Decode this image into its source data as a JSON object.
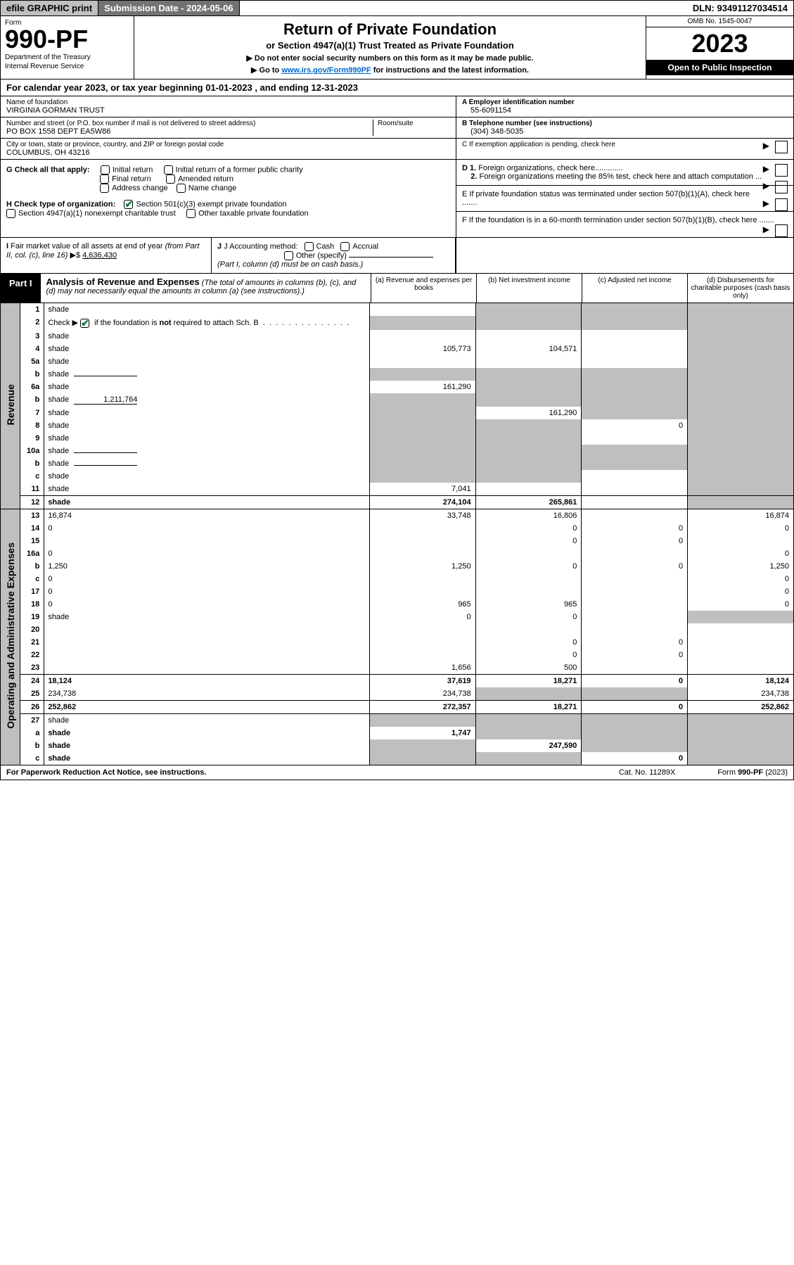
{
  "topbar": {
    "efile": "efile GRAPHIC print",
    "submission": "Submission Date - 2024-05-06",
    "dln": "DLN: 93491127034514"
  },
  "header": {
    "form_label": "Form",
    "form_num": "990-PF",
    "dept1": "Department of the Treasury",
    "dept2": "Internal Revenue Service",
    "title": "Return of Private Foundation",
    "subtitle": "or Section 4947(a)(1) Trust Treated as Private Foundation",
    "note1": "▶ Do not enter social security numbers on this form as it may be made public.",
    "note2_pre": "▶ Go to ",
    "note2_link": "www.irs.gov/Form990PF",
    "note2_post": " for instructions and the latest information.",
    "omb": "OMB No. 1545-0047",
    "year": "2023",
    "inspect": "Open to Public Inspection"
  },
  "cal_year": "For calendar year 2023, or tax year beginning 01-01-2023                              , and ending 12-31-2023",
  "info": {
    "name_label": "Name of foundation",
    "name": "VIRGINIA GORMAN TRUST",
    "addr_label": "Number and street (or P.O. box number if mail is not delivered to street address)",
    "room_label": "Room/suite",
    "addr": "PO BOX 1558 DEPT EA5W86",
    "city_label": "City or town, state or province, country, and ZIP or foreign postal code",
    "city": "COLUMBUS, OH  43216",
    "ein_label": "A Employer identification number",
    "ein": "55-6091154",
    "tel_label": "B Telephone number (see instructions)",
    "tel": "(304) 348-5035",
    "c_label": "C If exemption application is pending, check here"
  },
  "checks": {
    "g_label": "G Check all that apply:",
    "g_opts": [
      "Initial return",
      "Initial return of a former public charity",
      "Final return",
      "Amended return",
      "Address change",
      "Name change"
    ],
    "h_label": "H Check type of organization:",
    "h1": "Section 501(c)(3) exempt private foundation",
    "h2": "Section 4947(a)(1) nonexempt charitable trust",
    "h3": "Other taxable private foundation",
    "d1": "D 1. Foreign organizations, check here.............",
    "d2": "2. Foreign organizations meeting the 85% test, check here and attach computation ...",
    "e": "E  If private foundation status was terminated under section 507(b)(1)(A), check here .......",
    "f": "F  If the foundation is in a 60-month termination under section 507(b)(1)(B), check here .......",
    "i_label": "I Fair market value of all assets at end of year (from Part II, col. (c), line 16) ▶$ ",
    "i_val": "4,636,430",
    "j_label": "J Accounting method:",
    "j_cash": "Cash",
    "j_accrual": "Accrual",
    "j_other": "Other (specify)",
    "j_note": "(Part I, column (d) must be on cash basis.)"
  },
  "part1": {
    "label": "Part I",
    "title": "Analysis of Revenue and Expenses",
    "note": " (The total of amounts in columns (b), (c), and (d) may not necessarily equal the amounts in column (a) (see instructions).)",
    "cols": {
      "a": "(a)   Revenue and expenses per books",
      "b": "(b)   Net investment income",
      "c": "(c)   Adjusted net income",
      "d": "(d)   Disbursements for charitable purposes (cash basis only)"
    }
  },
  "side": {
    "rev": "Revenue",
    "exp": "Operating and Administrative Expenses"
  },
  "rows": [
    {
      "n": "1",
      "d": "shade",
      "a": "",
      "b": "shade",
      "c": "shade"
    },
    {
      "n": "2",
      "d": "shade",
      "a": "shade",
      "b": "shade",
      "c": "shade",
      "chk": true
    },
    {
      "n": "3",
      "d": "shade",
      "a": "",
      "b": "",
      "c": ""
    },
    {
      "n": "4",
      "d": "shade",
      "a": "105,773",
      "b": "104,571",
      "c": ""
    },
    {
      "n": "5a",
      "d": "shade",
      "a": "",
      "b": "",
      "c": ""
    },
    {
      "n": "b",
      "d": "shade",
      "a": "shade",
      "b": "shade",
      "c": "shade",
      "mini": ""
    },
    {
      "n": "6a",
      "d": "shade",
      "a": "161,290",
      "b": "shade",
      "c": "shade"
    },
    {
      "n": "b",
      "d": "shade",
      "a": "shade",
      "b": "shade",
      "c": "shade",
      "mini": "1,211,764"
    },
    {
      "n": "7",
      "d": "shade",
      "a": "shade",
      "b": "161,290",
      "c": "shade"
    },
    {
      "n": "8",
      "d": "shade",
      "a": "shade",
      "b": "shade",
      "c": "0"
    },
    {
      "n": "9",
      "d": "shade",
      "a": "shade",
      "b": "shade",
      "c": ""
    },
    {
      "n": "10a",
      "d": "shade",
      "a": "shade",
      "b": "shade",
      "c": "shade",
      "mini": ""
    },
    {
      "n": "b",
      "d": "shade",
      "a": "shade",
      "b": "shade",
      "c": "shade",
      "mini": ""
    },
    {
      "n": "c",
      "d": "shade",
      "a": "shade",
      "b": "shade",
      "c": ""
    },
    {
      "n": "11",
      "d": "shade",
      "a": "7,041",
      "b": "",
      "c": ""
    },
    {
      "n": "12",
      "d": "shade",
      "a": "274,104",
      "b": "265,861",
      "c": "",
      "bold": true,
      "sep": true
    },
    {
      "n": "13",
      "d": "16,874",
      "a": "33,748",
      "b": "16,806",
      "c": "",
      "sep": true
    },
    {
      "n": "14",
      "d": "0",
      "a": "",
      "b": "0",
      "c": "0"
    },
    {
      "n": "15",
      "d": "",
      "a": "",
      "b": "0",
      "c": "0"
    },
    {
      "n": "16a",
      "d": "0",
      "a": "",
      "b": "",
      "c": ""
    },
    {
      "n": "b",
      "d": "1,250",
      "a": "1,250",
      "b": "0",
      "c": "0"
    },
    {
      "n": "c",
      "d": "0",
      "a": "",
      "b": "",
      "c": ""
    },
    {
      "n": "17",
      "d": "0",
      "a": "",
      "b": "",
      "c": ""
    },
    {
      "n": "18",
      "d": "0",
      "a": "965",
      "b": "965",
      "c": ""
    },
    {
      "n": "19",
      "d": "shade",
      "a": "0",
      "b": "0",
      "c": ""
    },
    {
      "n": "20",
      "d": "",
      "a": "",
      "b": "",
      "c": ""
    },
    {
      "n": "21",
      "d": "",
      "a": "",
      "b": "0",
      "c": "0"
    },
    {
      "n": "22",
      "d": "",
      "a": "",
      "b": "0",
      "c": "0"
    },
    {
      "n": "23",
      "d": "",
      "a": "1,656",
      "b": "500",
      "c": ""
    },
    {
      "n": "24",
      "d": "18,124",
      "a": "37,619",
      "b": "18,271",
      "c": "0",
      "bold": true,
      "sep": true
    },
    {
      "n": "25",
      "d": "234,738",
      "a": "234,738",
      "b": "shade",
      "c": "shade"
    },
    {
      "n": "26",
      "d": "252,862",
      "a": "272,357",
      "b": "18,271",
      "c": "0",
      "bold": true,
      "sep": true
    },
    {
      "n": "27",
      "d": "shade",
      "a": "shade",
      "b": "shade",
      "c": "shade",
      "sep": true
    },
    {
      "n": "a",
      "d": "shade",
      "a": "1,747",
      "b": "shade",
      "c": "shade",
      "bold": true
    },
    {
      "n": "b",
      "d": "shade",
      "a": "shade",
      "b": "247,590",
      "c": "shade",
      "bold": true
    },
    {
      "n": "c",
      "d": "shade",
      "a": "shade",
      "b": "shade",
      "c": "0",
      "bold": true
    }
  ],
  "footer": {
    "left": "For Paperwork Reduction Act Notice, see instructions.",
    "mid": "Cat. No. 11289X",
    "right": "Form 990-PF (2023)"
  },
  "colors": {
    "shade": "#bfbfbf",
    "black": "#000000",
    "link": "#0066cc",
    "check": "#0a7a3a"
  }
}
